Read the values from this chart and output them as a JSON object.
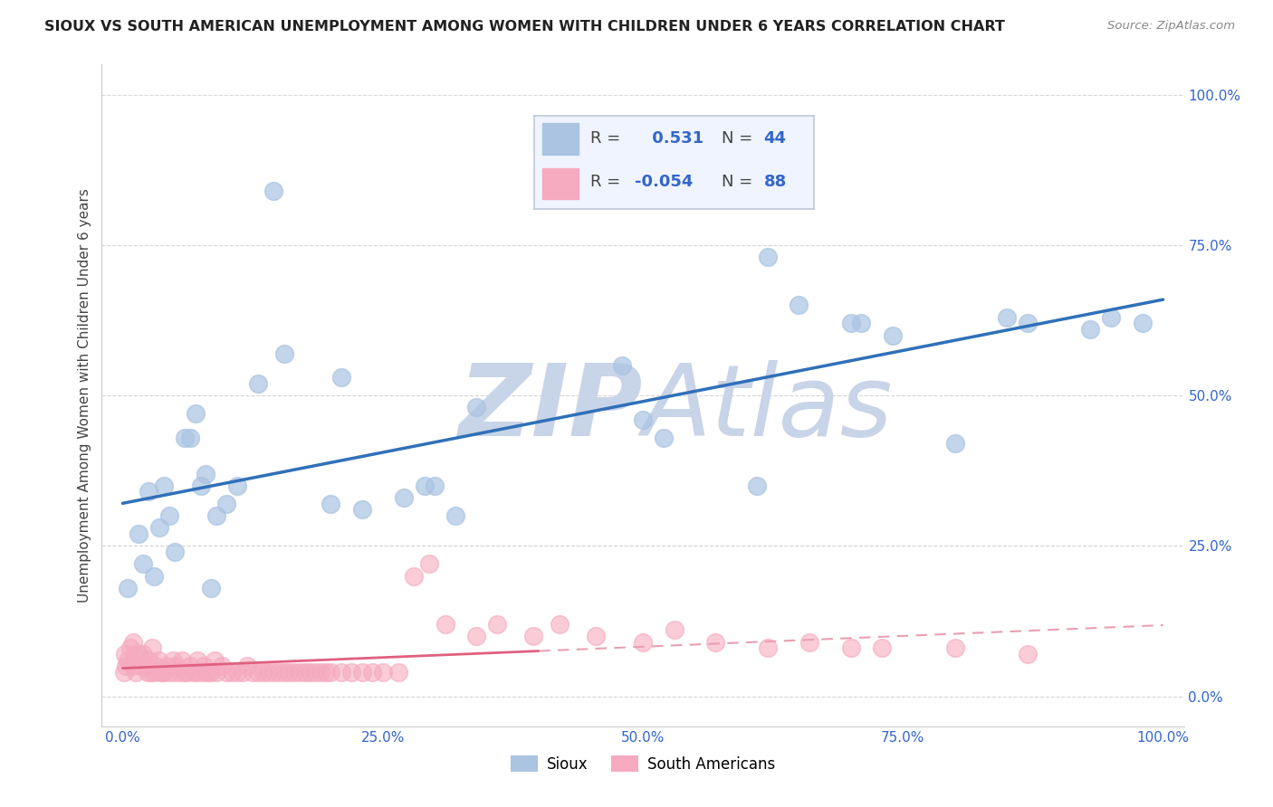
{
  "title": "SIOUX VS SOUTH AMERICAN UNEMPLOYMENT AMONG WOMEN WITH CHILDREN UNDER 6 YEARS CORRELATION CHART",
  "source": "Source: ZipAtlas.com",
  "ylabel": "Unemployment Among Women with Children Under 6 years",
  "xlim": [
    -0.02,
    1.02
  ],
  "ylim": [
    -0.05,
    1.05
  ],
  "xticks": [
    0.0,
    0.25,
    0.5,
    0.75,
    1.0
  ],
  "xticklabels": [
    "0.0%",
    "25.0%",
    "50.0%",
    "75.0%",
    "100.0%"
  ],
  "yticks": [
    0.0,
    0.25,
    0.5,
    0.75,
    1.0
  ],
  "yticklabels": [
    "0.0%",
    "25.0%",
    "50.0%",
    "75.0%",
    "100.0%"
  ],
  "sioux_color": "#aac4e2",
  "south_american_color": "#f5aabf",
  "sioux_R": 0.531,
  "sioux_N": 44,
  "south_american_R": -0.054,
  "south_american_N": 88,
  "trend_sioux_color": "#3070b8",
  "trend_south_solid_color": "#e06080",
  "trend_south_dash_color": "#e8a0b0",
  "background_color": "#ffffff",
  "watermark_color": "#c8d4e8",
  "grid_color": "#cccccc",
  "sioux_x": [
    0.005,
    0.015,
    0.02,
    0.025,
    0.03,
    0.035,
    0.04,
    0.045,
    0.05,
    0.06,
    0.065,
    0.07,
    0.075,
    0.08,
    0.085,
    0.09,
    0.1,
    0.11,
    0.13,
    0.145,
    0.155,
    0.2,
    0.21,
    0.23,
    0.27,
    0.29,
    0.3,
    0.32,
    0.34,
    0.48,
    0.5,
    0.52,
    0.61,
    0.62,
    0.65,
    0.7,
    0.71,
    0.74,
    0.8,
    0.85,
    0.87,
    0.93,
    0.95,
    0.98
  ],
  "sioux_y": [
    0.18,
    0.27,
    0.22,
    0.34,
    0.2,
    0.28,
    0.35,
    0.3,
    0.24,
    0.43,
    0.43,
    0.47,
    0.35,
    0.37,
    0.18,
    0.3,
    0.32,
    0.35,
    0.52,
    0.84,
    0.57,
    0.32,
    0.53,
    0.31,
    0.33,
    0.35,
    0.35,
    0.3,
    0.48,
    0.55,
    0.46,
    0.43,
    0.35,
    0.73,
    0.65,
    0.62,
    0.62,
    0.6,
    0.42,
    0.63,
    0.62,
    0.61,
    0.63,
    0.62
  ],
  "south_x": [
    0.001,
    0.002,
    0.003,
    0.005,
    0.007,
    0.009,
    0.01,
    0.012,
    0.013,
    0.015,
    0.018,
    0.02,
    0.022,
    0.024,
    0.025,
    0.027,
    0.028,
    0.03,
    0.032,
    0.034,
    0.036,
    0.038,
    0.04,
    0.042,
    0.045,
    0.048,
    0.05,
    0.052,
    0.055,
    0.057,
    0.06,
    0.062,
    0.065,
    0.068,
    0.07,
    0.072,
    0.075,
    0.078,
    0.08,
    0.082,
    0.085,
    0.088,
    0.09,
    0.095,
    0.1,
    0.105,
    0.11,
    0.115,
    0.12,
    0.125,
    0.13,
    0.135,
    0.14,
    0.145,
    0.15,
    0.155,
    0.16,
    0.165,
    0.17,
    0.175,
    0.18,
    0.185,
    0.19,
    0.195,
    0.2,
    0.21,
    0.22,
    0.23,
    0.24,
    0.25,
    0.265,
    0.28,
    0.295,
    0.31,
    0.34,
    0.36,
    0.395,
    0.42,
    0.455,
    0.5,
    0.53,
    0.57,
    0.62,
    0.66,
    0.7,
    0.73,
    0.8,
    0.87
  ],
  "south_y": [
    0.04,
    0.07,
    0.05,
    0.06,
    0.08,
    0.05,
    0.09,
    0.07,
    0.04,
    0.07,
    0.05,
    0.07,
    0.05,
    0.04,
    0.06,
    0.04,
    0.08,
    0.04,
    0.05,
    0.06,
    0.04,
    0.04,
    0.04,
    0.05,
    0.04,
    0.06,
    0.04,
    0.05,
    0.04,
    0.06,
    0.04,
    0.04,
    0.05,
    0.04,
    0.04,
    0.06,
    0.04,
    0.05,
    0.04,
    0.04,
    0.04,
    0.06,
    0.04,
    0.05,
    0.04,
    0.04,
    0.04,
    0.04,
    0.05,
    0.04,
    0.04,
    0.04,
    0.04,
    0.04,
    0.04,
    0.04,
    0.04,
    0.04,
    0.04,
    0.04,
    0.04,
    0.04,
    0.04,
    0.04,
    0.04,
    0.04,
    0.04,
    0.04,
    0.04,
    0.04,
    0.04,
    0.2,
    0.22,
    0.12,
    0.1,
    0.12,
    0.1,
    0.12,
    0.1,
    0.09,
    0.11,
    0.09,
    0.08,
    0.09,
    0.08,
    0.08,
    0.08,
    0.07
  ],
  "legend_box_color": "#f0f4ff",
  "legend_border_color": "#c0c8d8",
  "legend_text_color": "#3366cc"
}
